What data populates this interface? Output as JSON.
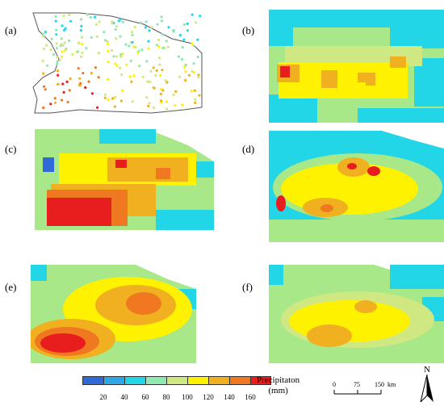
{
  "panels": [
    {
      "label": "(a)"
    },
    {
      "label": "(b)"
    },
    {
      "label": "(c)"
    },
    {
      "label": "(d)"
    },
    {
      "label": "(e)"
    },
    {
      "label": "(f)"
    }
  ],
  "legend": {
    "title_line1": "Precipitaton",
    "title_line2": "(mm)",
    "ticks": [
      "20",
      "40",
      "60",
      "80",
      "100",
      "120",
      "140",
      "160"
    ],
    "colors": [
      "#2f6bd8",
      "#2fa6e6",
      "#22d6e8",
      "#8ee8b0",
      "#cfe882",
      "#fff200",
      "#f0b020",
      "#f07820",
      "#e81e1e"
    ]
  },
  "scale_bar": {
    "labels": [
      "0",
      "75",
      "150"
    ],
    "unit": "km"
  },
  "north_arrow": {
    "label": "N"
  }
}
